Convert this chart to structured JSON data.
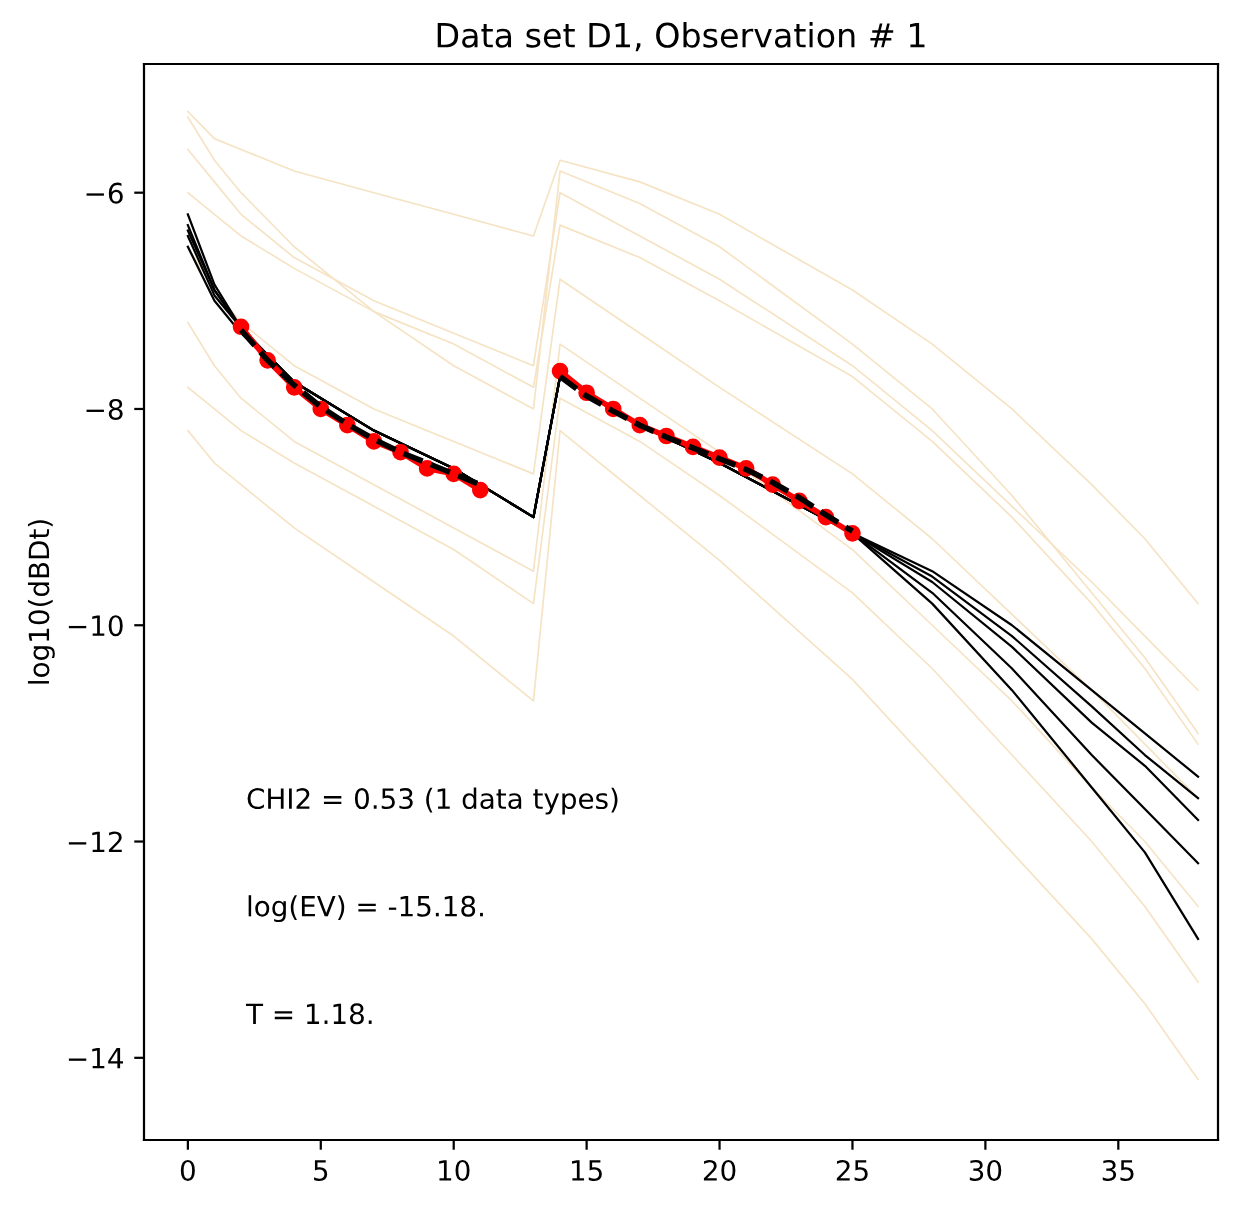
{
  "chart_data": {
    "type": "line",
    "title": "Data set D1, Observation # 1",
    "ylabel": "log10(dBDt)",
    "x": [
      0,
      1,
      2,
      4,
      7,
      10,
      13,
      14,
      17,
      20,
      25,
      28,
      31,
      34,
      36,
      38
    ],
    "xlim": [
      -1.65,
      38.75
    ],
    "ylim": [
      -14.76,
      -4.81
    ],
    "xticks": [
      0,
      5,
      10,
      15,
      20,
      25,
      30,
      35
    ],
    "yticks": [
      -14,
      -12,
      -10,
      -8,
      -6
    ],
    "grid": false,
    "legend": false,
    "annotations": [
      "CHI2 = 0.53 (1 data types)",
      "log(EV) = -15.18.",
      "T = 1.18."
    ],
    "series": [
      {
        "color": "#f5e3c4",
        "values": [
          -5.25,
          -5.5,
          -5.6,
          -5.8,
          -6.0,
          -6.2,
          -6.4,
          -5.7,
          -5.9,
          -6.2,
          -6.9,
          -7.4,
          -8.0,
          -8.7,
          -9.2,
          -9.8
        ]
      },
      {
        "color": "#f5e3c4",
        "values": [
          -5.3,
          -5.7,
          -6.0,
          -6.5,
          -7.1,
          -7.6,
          -8.0,
          -5.8,
          -6.1,
          -6.5,
          -7.4,
          -8.0,
          -8.8,
          -9.7,
          -10.3,
          -11.0
        ]
      },
      {
        "color": "#f5e3c4",
        "values": [
          -5.6,
          -5.9,
          -6.2,
          -6.6,
          -7.0,
          -7.3,
          -7.6,
          -6.0,
          -6.4,
          -6.8,
          -7.6,
          -8.2,
          -8.9,
          -9.6,
          -10.1,
          -10.6
        ]
      },
      {
        "color": "#f5e3c4",
        "values": [
          -6.0,
          -6.2,
          -6.4,
          -6.7,
          -7.1,
          -7.4,
          -7.8,
          -6.3,
          -6.6,
          -7.0,
          -7.7,
          -8.3,
          -9.0,
          -9.8,
          -10.4,
          -11.1
        ]
      },
      {
        "color": "#f5e3c4",
        "values": [
          -6.5,
          -6.9,
          -7.2,
          -7.6,
          -8.0,
          -8.3,
          -8.6,
          -6.8,
          -7.3,
          -7.8,
          -8.6,
          -9.2,
          -9.9,
          -10.6,
          -11.1,
          -11.6
        ]
      },
      {
        "color": "#f5e3c4",
        "values": [
          -7.2,
          -7.6,
          -7.9,
          -8.3,
          -8.7,
          -9.1,
          -9.5,
          -7.4,
          -7.9,
          -8.4,
          -9.3,
          -10.0,
          -10.7,
          -11.5,
          -12.0,
          -12.6
        ]
      },
      {
        "color": "#f5e3c4",
        "values": [
          -7.8,
          -8.0,
          -8.2,
          -8.5,
          -8.9,
          -9.3,
          -9.8,
          -7.9,
          -8.3,
          -8.8,
          -9.7,
          -10.4,
          -11.2,
          -12.0,
          -12.6,
          -13.3
        ]
      },
      {
        "color": "#f5e3c4",
        "values": [
          -8.2,
          -8.5,
          -8.7,
          -9.1,
          -9.6,
          -10.1,
          -10.7,
          -8.2,
          -8.8,
          -9.4,
          -10.5,
          -11.3,
          -12.1,
          -12.9,
          -13.5,
          -14.2
        ]
      },
      {
        "color": "#000000",
        "values": [
          -6.2,
          -6.85,
          -7.25,
          -7.75,
          -8.2,
          -8.55,
          -9.0,
          -7.7,
          -8.15,
          -8.5,
          -9.15,
          -9.5,
          -10.0,
          -10.6,
          -11.0,
          -11.4
        ]
      },
      {
        "color": "#000000",
        "values": [
          -6.3,
          -6.9,
          -7.25,
          -7.75,
          -8.2,
          -8.55,
          -9.0,
          -7.7,
          -8.15,
          -8.5,
          -9.15,
          -9.55,
          -10.1,
          -10.75,
          -11.2,
          -11.6
        ]
      },
      {
        "color": "#000000",
        "values": [
          -6.35,
          -6.9,
          -7.25,
          -7.75,
          -8.2,
          -8.55,
          -9.0,
          -7.7,
          -8.15,
          -8.5,
          -9.15,
          -9.6,
          -10.2,
          -10.9,
          -11.3,
          -11.8
        ]
      },
      {
        "color": "#000000",
        "values": [
          -6.4,
          -6.95,
          -7.25,
          -7.75,
          -8.2,
          -8.55,
          -9.0,
          -7.7,
          -8.15,
          -8.5,
          -9.15,
          -9.7,
          -10.4,
          -11.2,
          -11.7,
          -12.2
        ]
      },
      {
        "color": "#000000",
        "values": [
          -6.5,
          -7.0,
          -7.3,
          -7.75,
          -8.2,
          -8.55,
          -9.0,
          -7.7,
          -8.15,
          -8.5,
          -9.15,
          -9.8,
          -10.6,
          -11.5,
          -12.1,
          -12.9
        ]
      },
      {
        "color": "#ff0000",
        "marker": "circle",
        "x": [
          2,
          3,
          4,
          5,
          6,
          7,
          8,
          9,
          10,
          11,
          12,
          14,
          15,
          16,
          17,
          18,
          19,
          20,
          21,
          22,
          23,
          24,
          25
        ],
        "values": [
          -7.24,
          -7.55,
          -7.8,
          -8.0,
          -8.15,
          -8.3,
          -8.4,
          -8.55,
          -8.6,
          -8.75,
          null,
          -7.65,
          -7.85,
          -8.0,
          -8.15,
          -8.25,
          -8.35,
          -8.45,
          -8.55,
          -8.7,
          -8.85,
          -9.0,
          -9.15
        ]
      },
      {
        "color": "#000000",
        "line_style": "dashed",
        "x": [
          2,
          3,
          4,
          5,
          6,
          7,
          8,
          9,
          10,
          11,
          12,
          14,
          15,
          16,
          17,
          18,
          19,
          20,
          21,
          22,
          23,
          24,
          25
        ],
        "values": [
          -7.27,
          -7.55,
          -7.78,
          -7.98,
          -8.14,
          -8.28,
          -8.4,
          -8.5,
          -8.6,
          -8.7,
          null,
          -7.7,
          -7.88,
          -8.02,
          -8.15,
          -8.26,
          -8.36,
          -8.46,
          -8.56,
          -8.68,
          -8.82,
          -8.98,
          -9.13
        ]
      }
    ]
  }
}
